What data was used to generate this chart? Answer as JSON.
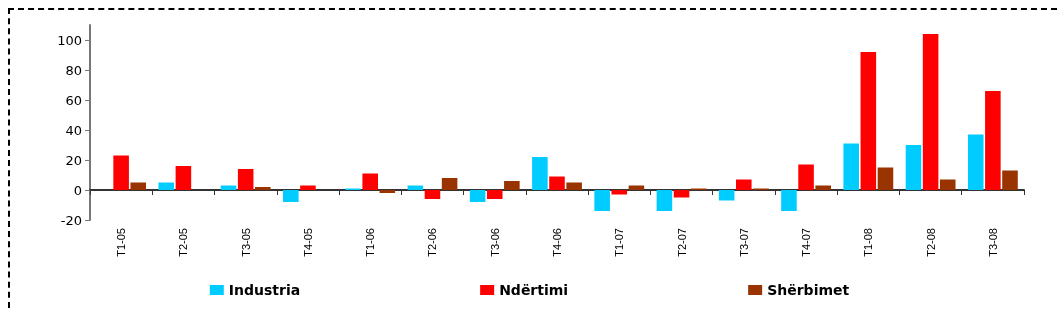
{
  "chart_data": {
    "type": "bar",
    "categories": [
      "T1-05",
      "T2-05",
      "T3-05",
      "T4-05",
      "T1-06",
      "T2-06",
      "T3-06",
      "T4-06",
      "T1-07",
      "T2-07",
      "T3-07",
      "T4-07",
      "T1-08",
      "T2-08",
      "T3-08"
    ],
    "series": [
      {
        "name": "Industria",
        "color": "#00ccff",
        "values": [
          0,
          5,
          3,
          -8,
          1,
          3,
          -8,
          22,
          -14,
          -14,
          -7,
          -14,
          31,
          30,
          37
        ]
      },
      {
        "name": "Ndërtimi",
        "color": "#ff0000",
        "values": [
          23,
          16,
          14,
          3,
          11,
          -6,
          -6,
          9,
          -3,
          -5,
          7,
          17,
          92,
          104,
          66
        ]
      },
      {
        "name": "Shërbimet",
        "color": "#993300",
        "values": [
          5,
          0,
          2,
          0,
          -2,
          8,
          6,
          5,
          3,
          1,
          1,
          3,
          15,
          7,
          13
        ]
      }
    ],
    "ylim": [
      -20,
      110
    ],
    "yticks": [
      -20,
      0,
      20,
      40,
      60,
      80,
      100
    ],
    "legend": "bottom"
  }
}
